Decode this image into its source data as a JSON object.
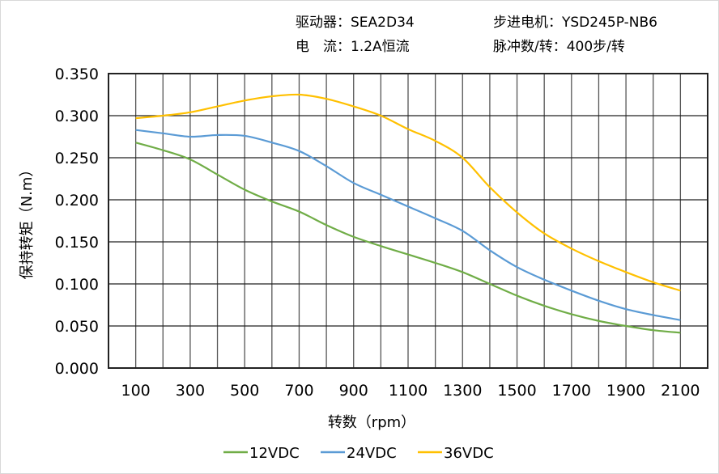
{
  "header": {
    "driver": "驱动器：SEA2D34",
    "motor": "步进电机：YSD245P-NB6",
    "current": "电　流：1.2A恒流",
    "pulses": "脉冲数/转：400步/转"
  },
  "chart_data": {
    "type": "line",
    "title": "",
    "xlabel": "转数（rpm）",
    "ylabel": "保持转矩（N.m）",
    "xlim": [
      0,
      2200
    ],
    "ylim": [
      0,
      0.35
    ],
    "x_ticks": [
      100,
      300,
      500,
      700,
      900,
      1100,
      1300,
      1500,
      1700,
      1900,
      2100
    ],
    "y_ticks": [
      "0.000",
      "0.050",
      "0.100",
      "0.150",
      "0.200",
      "0.250",
      "0.300",
      "0.350"
    ],
    "grid": true,
    "legend_position": "bottom",
    "x": [
      100,
      200,
      300,
      400,
      500,
      600,
      700,
      800,
      900,
      1000,
      1100,
      1200,
      1300,
      1400,
      1500,
      1600,
      1700,
      1800,
      1900,
      2000,
      2100
    ],
    "series": [
      {
        "name": "12VDC",
        "color": "#70ad47",
        "values": [
          0.268,
          0.259,
          0.248,
          0.23,
          0.212,
          0.198,
          0.186,
          0.17,
          0.156,
          0.145,
          0.135,
          0.125,
          0.114,
          0.1,
          0.086,
          0.074,
          0.064,
          0.056,
          0.05,
          0.045,
          0.042
        ]
      },
      {
        "name": "24VDC",
        "color": "#5b9bd5",
        "values": [
          0.283,
          0.279,
          0.275,
          0.277,
          0.276,
          0.268,
          0.258,
          0.24,
          0.22,
          0.206,
          0.192,
          0.178,
          0.163,
          0.14,
          0.12,
          0.105,
          0.092,
          0.08,
          0.07,
          0.063,
          0.057
        ]
      },
      {
        "name": "36VDC",
        "color": "#ffc000",
        "values": [
          0.297,
          0.3,
          0.304,
          0.311,
          0.318,
          0.323,
          0.325,
          0.32,
          0.311,
          0.3,
          0.284,
          0.27,
          0.25,
          0.215,
          0.185,
          0.16,
          0.142,
          0.127,
          0.114,
          0.102,
          0.092
        ]
      }
    ]
  }
}
